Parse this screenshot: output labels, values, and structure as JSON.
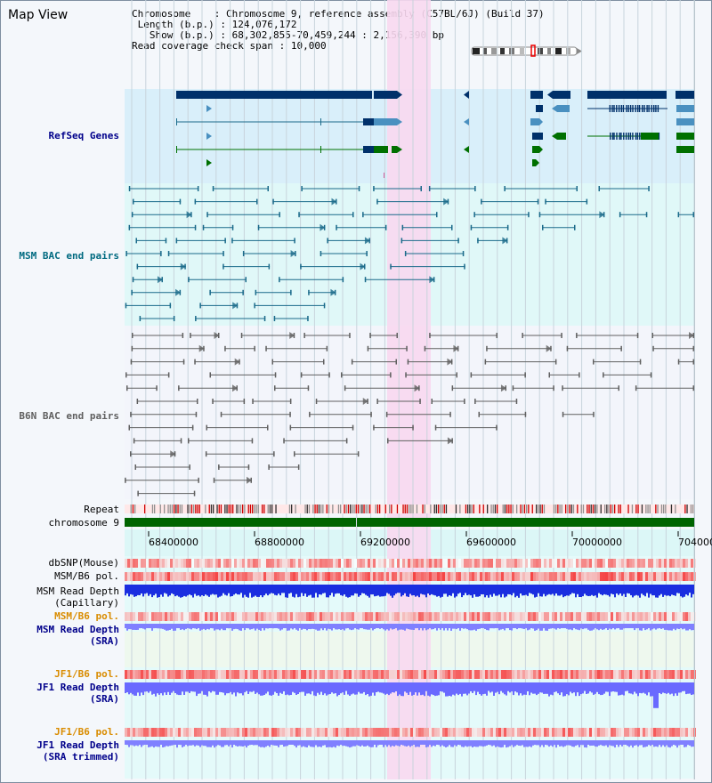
{
  "page": {
    "title": "Map View"
  },
  "info": {
    "chromosome_label": "Chromosome",
    "chromosome_value": "Chromosome 9, reference assembly (C57BL/6J) (Build 37)",
    "length_label": "Length (b.p.)",
    "length_value": "124,076,172",
    "show_label": "Show (b.p.)",
    "show_value": "68,302,855-70,459,244 : 2,156,390 bp",
    "coverage_label": "Read coverage check span",
    "coverage_value": "10,000"
  },
  "tracks": {
    "refseq": "RefSeq Genes",
    "msm_bac": "MSM BAC end pairs",
    "b6n_bac": "B6N BAC end pairs",
    "repeat": "Repeat",
    "chromosome": "chromosome 9",
    "dbsnp": "dbSNP(Mouse)",
    "msm_b6_pol_1": "MSM/B6 pol.",
    "msm_read_depth_cap_1": "MSM Read Depth",
    "msm_read_depth_cap_2": "(Capillary)",
    "msm_b6_pol_2": "MSM/B6 pol.",
    "msm_read_depth_sra_1": "MSM Read Depth",
    "msm_read_depth_sra_2": "(SRA)",
    "jf1_b6_pol_1": "JF1/B6 pol.",
    "jf1_read_depth_1": "JF1 Read Depth",
    "jf1_read_depth_2": "(SRA)",
    "jf1_b6_pol_2": "JF1/B6 pol.",
    "jf1_read_depth_trim_1": "JF1 Read Depth",
    "jf1_read_depth_trim_2": "(SRA trimmed)"
  },
  "axis": {
    "ticks": [
      "68400000",
      "68800000",
      "69200000",
      "69600000",
      "70000000",
      "704000"
    ]
  },
  "colors": {
    "refseq_bg": "#d9effa",
    "msm_bg": "#dcf7f7",
    "highlight": "#f8d8f0",
    "gene_dark": "#00306a",
    "gene_mid": "#4a90c0",
    "gene_green": "#007000",
    "msm_pair": "#1a6a8a",
    "b6n_pair": "#606060",
    "chromosome_bar": "#006400",
    "depth_blue": "#1a2ee0",
    "depth_light": "#8080ff",
    "label_blue": "#00008b",
    "label_orange": "#d98c00",
    "label_teal": "#006a80"
  }
}
